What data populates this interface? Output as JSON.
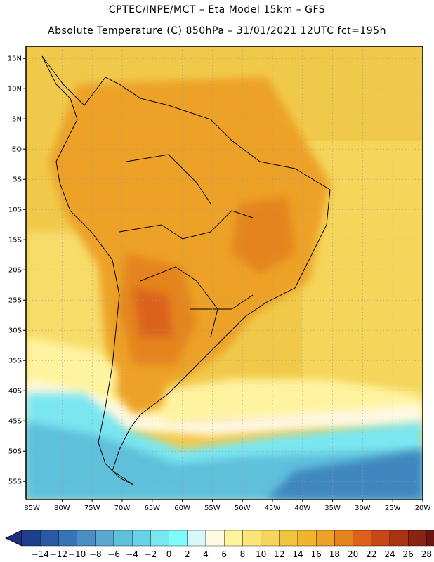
{
  "header": {
    "line1": "CPTEC/INPE/MCT –  Eta Model 15km – GFS",
    "line2": "Absolute Temperature (C) 850hPa – 31/01/2021 12UTC fct=195h"
  },
  "map": {
    "lat_labels": [
      "15N",
      "10N",
      "5N",
      "EQ",
      "5S",
      "10S",
      "15S",
      "20S",
      "25S",
      "30S",
      "35S",
      "40S",
      "45S",
      "50S",
      "55S"
    ],
    "lon_labels": [
      "85W",
      "80W",
      "75W",
      "70W",
      "65W",
      "60W",
      "55W",
      "50W",
      "45W",
      "40W",
      "35W",
      "30W",
      "25W",
      "20W"
    ],
    "extent": {
      "lon": [
        -86,
        -20
      ],
      "lat": [
        -58,
        17
      ]
    },
    "grid": true
  },
  "colorbar": {
    "labels": [
      "-14",
      "-12",
      "-10",
      "-8",
      "-6",
      "-4",
      "-2",
      "0",
      "2",
      "4",
      "6",
      "8",
      "10",
      "12",
      "14",
      "16",
      "18",
      "20",
      "22",
      "24",
      "26",
      "28"
    ],
    "colors": [
      "#1f3f8c",
      "#2a5aa3",
      "#3574b6",
      "#4a8fc4",
      "#5aa8cf",
      "#5fc0dc",
      "#67d3e6",
      "#7ae6f0",
      "#7ffafa",
      "#d6f8fb",
      "#fff8e2",
      "#fff3a0",
      "#fbe57a",
      "#f6d55a",
      "#f2c43e",
      "#f0b52a",
      "#eda126",
      "#e5841f",
      "#dc621a",
      "#c84717",
      "#a93414",
      "#8a2411",
      "#6e1410"
    ],
    "low_arrow_color": "#1b2f7a",
    "high_arrow_color": "#6a0a10"
  }
}
